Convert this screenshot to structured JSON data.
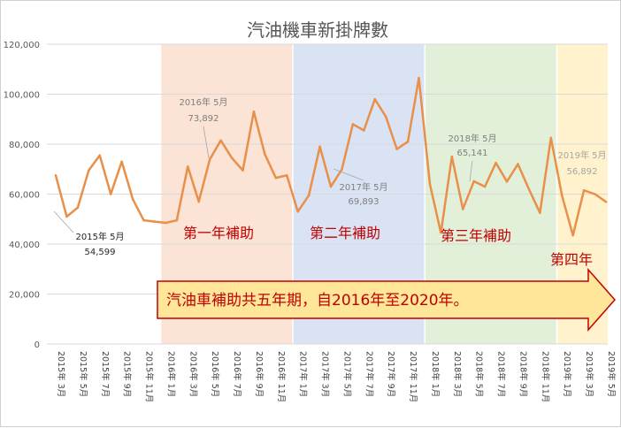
{
  "chart_data": {
    "type": "line",
    "title": "汽油機車新掛牌數",
    "ylim": [
      0,
      120000
    ],
    "yticks": [
      "0",
      "20,000",
      "40,000",
      "60,000",
      "80,000",
      "100,000",
      "120,000"
    ],
    "grid": true,
    "x": [
      "2015年 3月",
      "2015年 4月",
      "2015年 5月",
      "2015年 6月",
      "2015年 7月",
      "2015年 8月",
      "2015年 9月",
      "2015年 10月",
      "2015年 11月",
      "2015年 12月",
      "2016年 1月",
      "2016年 2月",
      "2016年 3月",
      "2016年 4月",
      "2016年 5月",
      "2016年 6月",
      "2016年 7月",
      "2016年 8月",
      "2016年 9月",
      "2016年 10月",
      "2016年 11月",
      "2016年 12月",
      "2017年 1月",
      "2017年 2月",
      "2017年 3月",
      "2017年 4月",
      "2017年 5月",
      "2017年 6月",
      "2017年 7月",
      "2017年 8月",
      "2017年 9月",
      "2017年 10月",
      "2017年 11月",
      "2017年 12月",
      "2018年 1月",
      "2018年 2月",
      "2018年 3月",
      "2018年 4月",
      "2018年 5月",
      "2018年 6月",
      "2018年 7月",
      "2018年 8月",
      "2018年 9月",
      "2018年 10月",
      "2018年 11月",
      "2018年 12月",
      "2019年 1月",
      "2019年 2月",
      "2019年 3月",
      "2019年 4月",
      "2019年 5月"
    ],
    "xticks": [
      "2015年 3月",
      "2015年 5月",
      "2015年 7月",
      "2015年 9月",
      "2015年 11月",
      "2016年 1月",
      "2016年 3月",
      "2016年 5月",
      "2016年 7月",
      "2016年 9月",
      "2016年 11月",
      "2017年 1月",
      "2017年 3月",
      "2017年 5月",
      "2017年 7月",
      "2017年 9月",
      "2017年 11月",
      "2018年 1月",
      "2018年 3月",
      "2018年 5月",
      "2018年 7月",
      "2018年 9月",
      "2018年 11月",
      "2019年 1月",
      "2019年 3月",
      "2019年 5月"
    ],
    "series": [
      {
        "color": "#e8904a",
        "values": [
          67500,
          51000,
          54599,
          69500,
          75500,
          60000,
          73000,
          58000,
          49500,
          49000,
          48500,
          49500,
          71000,
          57000,
          73892,
          81500,
          74500,
          69500,
          93000,
          76000,
          66500,
          67500,
          53000,
          59500,
          79000,
          63000,
          69893,
          88000,
          85500,
          98000,
          91000,
          78000,
          81000,
          106500,
          64000,
          44500,
          75000,
          54000,
          65141,
          63000,
          72500,
          65000,
          72000,
          62000,
          52500,
          82500,
          59500,
          43500,
          61500,
          60000,
          56892
        ]
      }
    ],
    "periods": [
      {
        "label": "第一年補助",
        "fill": "#fbe3d6"
      },
      {
        "label": "第二年補助",
        "fill": "#dae3f3"
      },
      {
        "label": "第三年補助",
        "fill": "#e2f0d9"
      },
      {
        "label": "第四年",
        "fill": "#fff2cc"
      }
    ],
    "annotations": [
      {
        "label": "2015年 5月",
        "value": "54,599"
      },
      {
        "label": "2016年 5月",
        "value": "73,892"
      },
      {
        "label": "2017年 5月",
        "value": "69,893"
      },
      {
        "label": "2018年 5月",
        "value": "65,141"
      },
      {
        "label": "2019年 5月",
        "value": "56,892"
      }
    ],
    "arrow_text": "汽油車補助共五年期，自2016年至2020年。"
  }
}
